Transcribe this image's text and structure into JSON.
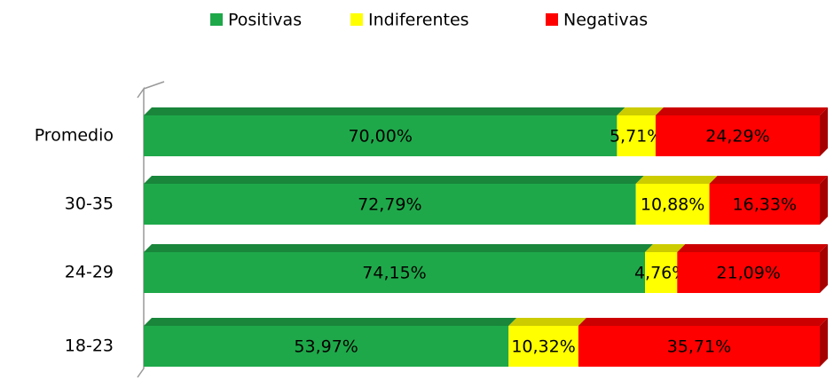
{
  "chart_data": {
    "type": "stacked-bar-horizontal",
    "categories": [
      "Promedio",
      "30-35",
      "24-29",
      "18-23"
    ],
    "series": [
      {
        "name": "Positivas",
        "color": "#1fa84a",
        "values": [
          70.0,
          72.79,
          74.15,
          53.97
        ],
        "value_labels": [
          "70,00%",
          "72,79%",
          "74,15%",
          "53,97%"
        ]
      },
      {
        "name": "Indiferentes",
        "color": "#ffff00",
        "values": [
          5.71,
          10.88,
          4.76,
          10.32
        ],
        "value_labels": [
          "5,71%",
          "10,88%",
          "4,76%",
          "10,32%"
        ]
      },
      {
        "name": "Negativas",
        "color": "#ff0000",
        "values": [
          24.29,
          16.33,
          21.09,
          35.71
        ],
        "value_labels": [
          "24,29%",
          "16,33%",
          "21,09%",
          "35,71%"
        ]
      }
    ],
    "xlim": [
      0,
      100
    ],
    "legend": "top"
  }
}
